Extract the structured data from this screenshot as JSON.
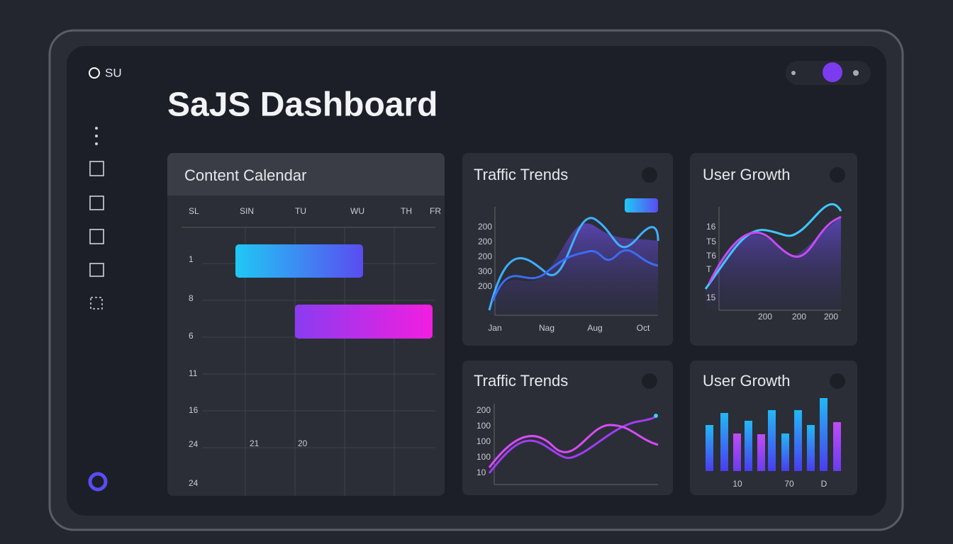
{
  "sidebar": {
    "brand": "SU"
  },
  "header": {
    "title": "SaJS Dashboard"
  },
  "calendar": {
    "title": "Content Calendar",
    "days": [
      "SL",
      "SIN",
      "TU",
      "WU",
      "TH",
      "FR"
    ],
    "rows": [
      "1",
      "8",
      "6",
      "11",
      "16",
      "24",
      "24"
    ],
    "dates": [
      "21",
      "20"
    ]
  },
  "traffic_top": {
    "title": "Traffic Trends",
    "y_labels": [
      "200",
      "200",
      "200",
      "300",
      "200"
    ],
    "x_labels": [
      "Jan",
      "Nag",
      "Aug",
      "Oct"
    ]
  },
  "growth_top": {
    "title": "User Growth",
    "y_labels": [
      "16",
      "T5",
      "T6",
      "T",
      "15"
    ],
    "x_labels": [
      "200",
      "200",
      "200"
    ]
  },
  "traffic_bottom": {
    "title": "Traffic Trends",
    "y_labels": [
      "200",
      "100",
      "100",
      "100",
      "10"
    ]
  },
  "growth_bottom": {
    "title": "User Growth",
    "x_labels": [
      "10",
      "70",
      "D"
    ]
  }
}
